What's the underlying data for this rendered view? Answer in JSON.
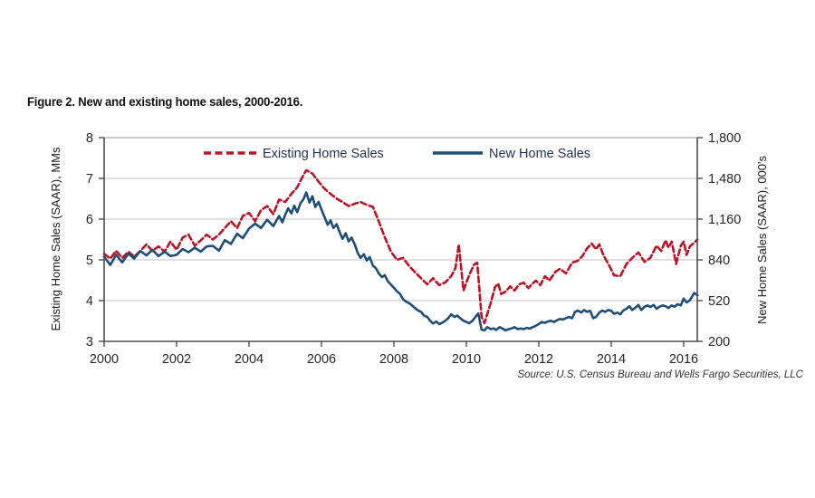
{
  "figure": {
    "title": "Figure 2. New and existing home sales, 2000-2016.",
    "source": "Source: U.S. Census Bureau and Wells Fargo Securities, LLC"
  },
  "legend": {
    "items": [
      {
        "label": "Existing Home Sales",
        "color": "#BF1226",
        "style": "dashed"
      },
      {
        "label": "New Home Sales",
        "color": "#1F4E79",
        "style": "solid"
      }
    ],
    "position": "top-inside"
  },
  "chart_data": {
    "type": "line",
    "title": "Figure 2. New and existing home sales, 2000-2016.",
    "grid": "horizontal",
    "x_axis": {
      "range": [
        2000,
        2016.42
      ],
      "ticks": [
        2000,
        2002,
        2004,
        2006,
        2008,
        2010,
        2012,
        2014,
        2016
      ]
    },
    "left_axis": {
      "label": "Existing Home Sales (SAAR), MMs",
      "range": [
        3,
        8
      ],
      "ticks": [
        3,
        4,
        5,
        6,
        7,
        8
      ],
      "tick_labels": [
        "3",
        "4",
        "5",
        "6",
        "7",
        "8"
      ]
    },
    "right_axis": {
      "label": "New Home Sales (SAAR), 000's",
      "range": [
        200,
        1800
      ],
      "ticks": [
        200,
        520,
        840,
        1160,
        1480,
        1800
      ],
      "tick_labels": [
        "200",
        "520",
        "840",
        "1,160",
        "1,480",
        "1,800"
      ]
    },
    "series": [
      {
        "name": "Existing Home Sales",
        "axis": "left",
        "unit": "MMs",
        "color": "#BF1226",
        "dash": true,
        "points": [
          [
            2000.0,
            5.15
          ],
          [
            2000.17,
            5.03
          ],
          [
            2000.33,
            5.22
          ],
          [
            2000.5,
            5.05
          ],
          [
            2000.67,
            5.2
          ],
          [
            2000.83,
            5.08
          ],
          [
            2001.0,
            5.22
          ],
          [
            2001.17,
            5.38
          ],
          [
            2001.33,
            5.22
          ],
          [
            2001.5,
            5.33
          ],
          [
            2001.67,
            5.2
          ],
          [
            2001.83,
            5.45
          ],
          [
            2002.0,
            5.25
          ],
          [
            2002.17,
            5.55
          ],
          [
            2002.33,
            5.62
          ],
          [
            2002.5,
            5.35
          ],
          [
            2002.67,
            5.48
          ],
          [
            2002.83,
            5.62
          ],
          [
            2003.0,
            5.5
          ],
          [
            2003.17,
            5.62
          ],
          [
            2003.33,
            5.78
          ],
          [
            2003.5,
            5.95
          ],
          [
            2003.67,
            5.78
          ],
          [
            2003.83,
            6.08
          ],
          [
            2004.0,
            6.15
          ],
          [
            2004.17,
            5.95
          ],
          [
            2004.33,
            6.22
          ],
          [
            2004.5,
            6.32
          ],
          [
            2004.67,
            6.12
          ],
          [
            2004.83,
            6.48
          ],
          [
            2005.0,
            6.42
          ],
          [
            2005.17,
            6.62
          ],
          [
            2005.33,
            6.78
          ],
          [
            2005.5,
            7.08
          ],
          [
            2005.58,
            7.2
          ],
          [
            2005.75,
            7.12
          ],
          [
            2005.92,
            6.92
          ],
          [
            2006.08,
            6.75
          ],
          [
            2006.25,
            6.62
          ],
          [
            2006.42,
            6.5
          ],
          [
            2006.58,
            6.42
          ],
          [
            2006.75,
            6.32
          ],
          [
            2006.92,
            6.38
          ],
          [
            2007.08,
            6.42
          ],
          [
            2007.25,
            6.35
          ],
          [
            2007.42,
            6.3
          ],
          [
            2007.58,
            5.95
          ],
          [
            2007.75,
            5.55
          ],
          [
            2007.92,
            5.2
          ],
          [
            2008.08,
            5.0
          ],
          [
            2008.25,
            5.05
          ],
          [
            2008.42,
            4.85
          ],
          [
            2008.58,
            4.7
          ],
          [
            2008.75,
            4.55
          ],
          [
            2008.92,
            4.4
          ],
          [
            2009.08,
            4.55
          ],
          [
            2009.25,
            4.38
          ],
          [
            2009.42,
            4.45
          ],
          [
            2009.58,
            4.6
          ],
          [
            2009.7,
            4.8
          ],
          [
            2009.79,
            5.38
          ],
          [
            2009.92,
            4.25
          ],
          [
            2010.08,
            4.63
          ],
          [
            2010.21,
            4.88
          ],
          [
            2010.3,
            4.93
          ],
          [
            2010.42,
            3.6
          ],
          [
            2010.5,
            3.45
          ],
          [
            2010.58,
            3.68
          ],
          [
            2010.67,
            3.93
          ],
          [
            2010.79,
            4.33
          ],
          [
            2010.88,
            4.42
          ],
          [
            2010.96,
            4.16
          ],
          [
            2011.08,
            4.22
          ],
          [
            2011.21,
            4.35
          ],
          [
            2011.33,
            4.25
          ],
          [
            2011.46,
            4.4
          ],
          [
            2011.58,
            4.44
          ],
          [
            2011.71,
            4.31
          ],
          [
            2011.83,
            4.42
          ],
          [
            2011.92,
            4.49
          ],
          [
            2012.04,
            4.38
          ],
          [
            2012.17,
            4.6
          ],
          [
            2012.29,
            4.49
          ],
          [
            2012.46,
            4.71
          ],
          [
            2012.58,
            4.78
          ],
          [
            2012.75,
            4.67
          ],
          [
            2012.92,
            4.93
          ],
          [
            2013.08,
            4.98
          ],
          [
            2013.21,
            5.1
          ],
          [
            2013.33,
            5.28
          ],
          [
            2013.46,
            5.4
          ],
          [
            2013.58,
            5.26
          ],
          [
            2013.67,
            5.38
          ],
          [
            2013.79,
            5.1
          ],
          [
            2013.92,
            4.9
          ],
          [
            2014.08,
            4.62
          ],
          [
            2014.25,
            4.6
          ],
          [
            2014.42,
            4.9
          ],
          [
            2014.58,
            5.05
          ],
          [
            2014.75,
            5.18
          ],
          [
            2014.92,
            4.95
          ],
          [
            2015.08,
            5.05
          ],
          [
            2015.25,
            5.35
          ],
          [
            2015.38,
            5.22
          ],
          [
            2015.5,
            5.48
          ],
          [
            2015.58,
            5.3
          ],
          [
            2015.67,
            5.45
          ],
          [
            2015.79,
            4.9
          ],
          [
            2015.92,
            5.35
          ],
          [
            2016.0,
            5.45
          ],
          [
            2016.08,
            5.12
          ],
          [
            2016.17,
            5.33
          ],
          [
            2016.29,
            5.42
          ],
          [
            2016.38,
            5.5
          ]
        ]
      },
      {
        "name": "New Home Sales",
        "axis": "right",
        "unit": "000's",
        "color": "#1F4E79",
        "dash": false,
        "points": [
          [
            2000.0,
            865
          ],
          [
            2000.17,
            800
          ],
          [
            2000.33,
            880
          ],
          [
            2000.5,
            820
          ],
          [
            2000.67,
            890
          ],
          [
            2000.83,
            850
          ],
          [
            2001.0,
            910
          ],
          [
            2001.17,
            875
          ],
          [
            2001.33,
            920
          ],
          [
            2001.5,
            870
          ],
          [
            2001.67,
            905
          ],
          [
            2001.83,
            870
          ],
          [
            2002.0,
            880
          ],
          [
            2002.17,
            925
          ],
          [
            2002.33,
            900
          ],
          [
            2002.5,
            935
          ],
          [
            2002.67,
            905
          ],
          [
            2002.83,
            945
          ],
          [
            2003.0,
            950
          ],
          [
            2003.17,
            912
          ],
          [
            2003.33,
            995
          ],
          [
            2003.5,
            965
          ],
          [
            2003.67,
            1045
          ],
          [
            2003.83,
            1010
          ],
          [
            2004.0,
            1085
          ],
          [
            2004.17,
            1125
          ],
          [
            2004.33,
            1090
          ],
          [
            2004.5,
            1155
          ],
          [
            2004.67,
            1105
          ],
          [
            2004.83,
            1185
          ],
          [
            2004.92,
            1135
          ],
          [
            2005.0,
            1195
          ],
          [
            2005.08,
            1245
          ],
          [
            2005.17,
            1205
          ],
          [
            2005.25,
            1265
          ],
          [
            2005.33,
            1215
          ],
          [
            2005.42,
            1285
          ],
          [
            2005.5,
            1315
          ],
          [
            2005.58,
            1370
          ],
          [
            2005.67,
            1290
          ],
          [
            2005.75,
            1340
          ],
          [
            2005.83,
            1255
          ],
          [
            2005.92,
            1295
          ],
          [
            2006.0,
            1235
          ],
          [
            2006.08,
            1180
          ],
          [
            2006.17,
            1115
          ],
          [
            2006.25,
            1150
          ],
          [
            2006.33,
            1090
          ],
          [
            2006.42,
            1120
          ],
          [
            2006.5,
            1060
          ],
          [
            2006.58,
            1005
          ],
          [
            2006.67,
            1050
          ],
          [
            2006.75,
            985
          ],
          [
            2006.83,
            1015
          ],
          [
            2006.92,
            960
          ],
          [
            2007.0,
            895
          ],
          [
            2007.08,
            855
          ],
          [
            2007.17,
            885
          ],
          [
            2007.25,
            835
          ],
          [
            2007.33,
            862
          ],
          [
            2007.42,
            795
          ],
          [
            2007.5,
            775
          ],
          [
            2007.58,
            735
          ],
          [
            2007.67,
            705
          ],
          [
            2007.75,
            720
          ],
          [
            2007.83,
            672
          ],
          [
            2007.92,
            645
          ],
          [
            2008.0,
            620
          ],
          [
            2008.08,
            595
          ],
          [
            2008.17,
            572
          ],
          [
            2008.25,
            532
          ],
          [
            2008.33,
            512
          ],
          [
            2008.42,
            500
          ],
          [
            2008.5,
            482
          ],
          [
            2008.58,
            462
          ],
          [
            2008.67,
            442
          ],
          [
            2008.75,
            432
          ],
          [
            2008.83,
            402
          ],
          [
            2008.92,
            392
          ],
          [
            2009.0,
            362
          ],
          [
            2009.08,
            340
          ],
          [
            2009.17,
            356
          ],
          [
            2009.25,
            336
          ],
          [
            2009.33,
            346
          ],
          [
            2009.42,
            362
          ],
          [
            2009.5,
            382
          ],
          [
            2009.58,
            412
          ],
          [
            2009.67,
            392
          ],
          [
            2009.75,
            402
          ],
          [
            2009.83,
            382
          ],
          [
            2009.92,
            362
          ],
          [
            2010.0,
            352
          ],
          [
            2010.08,
            342
          ],
          [
            2010.17,
            362
          ],
          [
            2010.25,
            392
          ],
          [
            2010.33,
            420
          ],
          [
            2010.42,
            292
          ],
          [
            2010.5,
            286
          ],
          [
            2010.58,
            312
          ],
          [
            2010.67,
            296
          ],
          [
            2010.75,
            302
          ],
          [
            2010.83,
            290
          ],
          [
            2010.92,
            312
          ],
          [
            2011.0,
            300
          ],
          [
            2011.08,
            286
          ],
          [
            2011.17,
            296
          ],
          [
            2011.25,
            302
          ],
          [
            2011.33,
            312
          ],
          [
            2011.42,
            296
          ],
          [
            2011.5,
            302
          ],
          [
            2011.58,
            296
          ],
          [
            2011.67,
            306
          ],
          [
            2011.75,
            300
          ],
          [
            2011.83,
            312
          ],
          [
            2011.92,
            322
          ],
          [
            2012.0,
            336
          ],
          [
            2012.08,
            352
          ],
          [
            2012.17,
            346
          ],
          [
            2012.25,
            356
          ],
          [
            2012.33,
            362
          ],
          [
            2012.42,
            352
          ],
          [
            2012.5,
            366
          ],
          [
            2012.58,
            376
          ],
          [
            2012.67,
            372
          ],
          [
            2012.75,
            382
          ],
          [
            2012.83,
            392
          ],
          [
            2012.92,
            382
          ],
          [
            2013.0,
            432
          ],
          [
            2013.08,
            442
          ],
          [
            2013.17,
            426
          ],
          [
            2013.25,
            446
          ],
          [
            2013.33,
            432
          ],
          [
            2013.42,
            440
          ],
          [
            2013.5,
            382
          ],
          [
            2013.58,
            392
          ],
          [
            2013.67,
            426
          ],
          [
            2013.75,
            442
          ],
          [
            2013.83,
            432
          ],
          [
            2013.92,
            446
          ],
          [
            2014.0,
            440
          ],
          [
            2014.08,
            416
          ],
          [
            2014.17,
            426
          ],
          [
            2014.25,
            412
          ],
          [
            2014.33,
            442
          ],
          [
            2014.42,
            456
          ],
          [
            2014.5,
            476
          ],
          [
            2014.58,
            446
          ],
          [
            2014.67,
            466
          ],
          [
            2014.75,
            486
          ],
          [
            2014.83,
            446
          ],
          [
            2014.92,
            472
          ],
          [
            2015.0,
            482
          ],
          [
            2015.08,
            470
          ],
          [
            2015.17,
            486
          ],
          [
            2015.25,
            456
          ],
          [
            2015.33,
            472
          ],
          [
            2015.42,
            482
          ],
          [
            2015.5,
            476
          ],
          [
            2015.58,
            462
          ],
          [
            2015.67,
            482
          ],
          [
            2015.75,
            472
          ],
          [
            2015.83,
            492
          ],
          [
            2015.92,
            482
          ],
          [
            2016.0,
            536
          ],
          [
            2016.08,
            506
          ],
          [
            2016.17,
            522
          ],
          [
            2016.29,
            580
          ],
          [
            2016.38,
            562
          ]
        ]
      }
    ]
  },
  "colors": {
    "existing_red": "#BF1226",
    "new_blue": "#1F4E79",
    "gridline": "#C3C3C3",
    "spine": "#4D4D4D"
  }
}
